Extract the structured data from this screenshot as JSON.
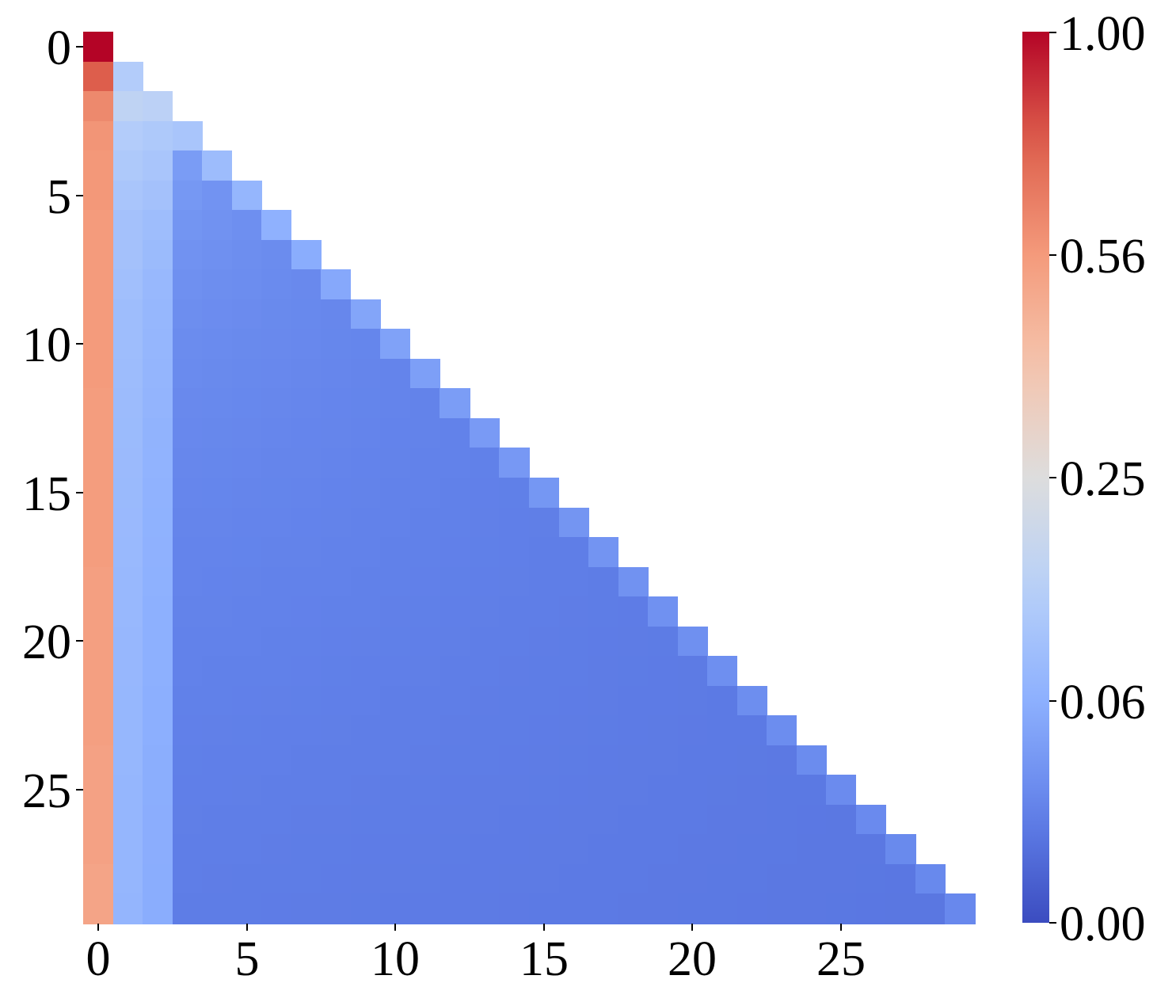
{
  "chart_data": {
    "type": "heatmap",
    "title": "",
    "xlabel": "",
    "ylabel": "",
    "n_rows": 30,
    "n_cols": 30,
    "mask": "upper triangle (j > i) is blank",
    "x_ticks": [
      0,
      5,
      10,
      15,
      20,
      25
    ],
    "y_ticks": [
      0,
      5,
      10,
      15,
      20,
      25
    ],
    "x_tick_labels": [
      "0",
      "5",
      "10",
      "15",
      "20",
      "25"
    ],
    "y_tick_labels": [
      "0",
      "5",
      "10",
      "15",
      "20",
      "25"
    ],
    "colormap": "coolwarm",
    "norm": "power (gamma=0.5)",
    "vmin": 0.0,
    "vmax": 1.0,
    "colorbar": {
      "ticks": [
        1.0,
        0.5625,
        0.25,
        0.0625,
        0.0
      ],
      "tick_labels": [
        "1.00",
        "0.56",
        "0.25",
        "0.06",
        "0.00"
      ],
      "position": "right"
    },
    "column0_values": [
      1.0,
      0.77,
      0.62,
      0.58,
      0.57,
      0.57,
      0.56,
      0.56,
      0.56,
      0.56,
      0.56,
      0.56,
      0.55,
      0.55,
      0.55,
      0.55,
      0.55,
      0.55,
      0.54,
      0.54,
      0.54,
      0.54,
      0.54,
      0.54,
      0.53,
      0.53,
      0.53,
      0.53,
      0.52,
      0.52
    ],
    "column1_values": [
      null,
      0.13,
      0.16,
      0.13,
      0.12,
      0.11,
      0.1,
      0.1,
      0.095,
      0.09,
      0.09,
      0.088,
      0.086,
      0.085,
      0.084,
      0.083,
      0.082,
      0.081,
      0.08,
      0.079,
      0.078,
      0.078,
      0.077,
      0.076,
      0.076,
      0.075,
      0.075,
      0.074,
      0.074,
      0.073
    ],
    "column2_values": [
      null,
      null,
      0.15,
      0.12,
      0.11,
      0.1,
      0.09,
      0.085,
      0.08,
      0.077,
      0.075,
      0.073,
      0.071,
      0.069,
      0.068,
      0.067,
      0.066,
      0.065,
      0.064,
      0.063,
      0.063,
      0.062,
      0.061,
      0.061,
      0.06,
      0.06,
      0.059,
      0.059,
      0.058,
      0.058
    ],
    "diagonal_values_approx": "new tokens ~0.10 at row 3 decaying to ~0.015 at row 29",
    "off_diagonal_tail_approx": "columns >= 3 range ~0.045 (early rows) down to ~0.012 (late rows)",
    "grid": false
  },
  "colorbar_labels": [
    "1.00",
    "0.56",
    "0.25",
    "0.06",
    "0.00"
  ],
  "x_labels": [
    "0",
    "5",
    "10",
    "15",
    "20",
    "25"
  ],
  "y_labels": [
    "0",
    "5",
    "10",
    "15",
    "20",
    "25"
  ]
}
